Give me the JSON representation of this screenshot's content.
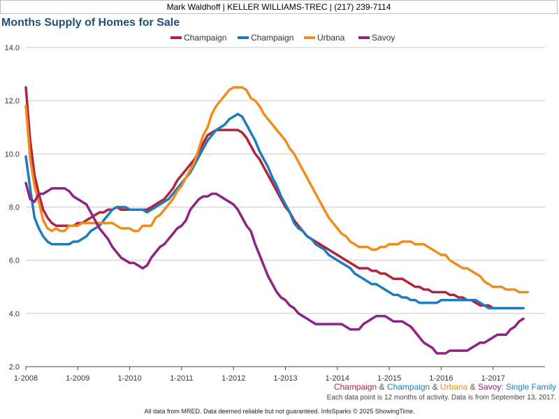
{
  "header": {
    "agent_line": "Mark Waldhoff | KELLER WILLIAMS-TREC | (217) 239-7114"
  },
  "chart_title": "Months Supply of Homes for Sale",
  "footer": {
    "series_caption": [
      {
        "text": "Champaign",
        "color": "#b0243c"
      },
      {
        "text": " & ",
        "color": "#555555"
      },
      {
        "text": "Champaign",
        "color": "#1e7bbd"
      },
      {
        "text": " & ",
        "color": "#555555"
      },
      {
        "text": "Urbana",
        "color": "#f08c1e"
      },
      {
        "text": " & ",
        "color": "#555555"
      },
      {
        "text": "Savoy",
        "color": "#8e2287"
      },
      {
        "text": ": Single Family",
        "color": "#1e7bbd"
      }
    ],
    "note": "Each data point is 12 months of activity. Data is from September 13, 2017.",
    "disclaimer": "All data from MRED. Data deemed reliable but not guaranteed. InfoSparks © 2025 ShowingTime."
  },
  "chart_data": {
    "type": "line",
    "title": "Months Supply of Homes for Sale",
    "xlabel": "",
    "ylabel": "",
    "ylim": [
      2.0,
      14.0
    ],
    "yticks": [
      "2.0",
      "4.0",
      "6.0",
      "8.0",
      "10.0",
      "12.0",
      "14.0"
    ],
    "xticks": [
      "1-2008",
      "1-2009",
      "1-2010",
      "1-2011",
      "1-2012",
      "1-2013",
      "1-2014",
      "1-2015",
      "1-2016",
      "1-2017"
    ],
    "x_start": "2008-01",
    "grid": true,
    "legend_position": "top-center",
    "series": [
      {
        "name": "Champaign",
        "color": "#b0243c",
        "values": [
          12.5,
          10.5,
          9.2,
          8.5,
          7.9,
          7.6,
          7.4,
          7.3,
          7.3,
          7.3,
          7.3,
          7.3,
          7.4,
          7.4,
          7.5,
          7.6,
          7.7,
          7.8,
          7.8,
          7.9,
          7.9,
          8.0,
          7.9,
          7.9,
          7.9,
          7.9,
          7.9,
          7.9,
          7.9,
          8.0,
          8.1,
          8.2,
          8.3,
          8.5,
          8.7,
          9.0,
          9.2,
          9.4,
          9.6,
          9.8,
          10.1,
          10.4,
          10.7,
          10.8,
          10.9,
          10.9,
          10.9,
          10.9,
          10.9,
          10.9,
          10.8,
          10.6,
          10.3,
          10.0,
          9.8,
          9.5,
          9.2,
          8.9,
          8.6,
          8.3,
          8.0,
          7.8,
          7.5,
          7.3,
          7.1,
          6.9,
          6.8,
          6.7,
          6.6,
          6.5,
          6.4,
          6.3,
          6.2,
          6.1,
          6.0,
          5.9,
          5.8,
          5.7,
          5.7,
          5.7,
          5.6,
          5.6,
          5.5,
          5.5,
          5.4,
          5.3,
          5.3,
          5.3,
          5.2,
          5.1,
          5.0,
          5.0,
          4.9,
          4.9,
          4.8,
          4.8,
          4.8,
          4.8,
          4.7,
          4.7,
          4.6,
          4.6,
          4.5,
          4.5,
          4.4,
          4.3,
          4.3,
          4.3,
          4.2,
          4.2,
          4.2,
          4.2,
          4.2,
          4.2,
          4.2,
          4.2
        ]
      },
      {
        "name": "Champaign",
        "color": "#1e7bbd",
        "values": [
          9.9,
          8.7,
          7.6,
          7.2,
          6.9,
          6.7,
          6.6,
          6.6,
          6.6,
          6.6,
          6.6,
          6.7,
          6.7,
          6.8,
          6.9,
          7.1,
          7.2,
          7.3,
          7.5,
          7.7,
          7.9,
          8.0,
          8.0,
          8.0,
          7.9,
          7.9,
          7.9,
          7.9,
          7.8,
          7.9,
          8.0,
          8.1,
          8.2,
          8.3,
          8.5,
          8.7,
          8.9,
          9.1,
          9.3,
          9.6,
          9.9,
          10.2,
          10.5,
          10.7,
          10.9,
          11.0,
          11.1,
          11.3,
          11.4,
          11.5,
          11.4,
          11.1,
          10.8,
          10.5,
          10.1,
          9.8,
          9.5,
          9.1,
          8.8,
          8.4,
          8.1,
          7.8,
          7.4,
          7.2,
          7.1,
          6.9,
          6.8,
          6.6,
          6.5,
          6.4,
          6.2,
          6.1,
          6.0,
          5.9,
          5.8,
          5.7,
          5.5,
          5.4,
          5.3,
          5.2,
          5.1,
          5.1,
          5.0,
          4.9,
          4.8,
          4.7,
          4.7,
          4.6,
          4.6,
          4.5,
          4.5,
          4.4,
          4.4,
          4.4,
          4.4,
          4.4,
          4.5,
          4.5,
          4.5,
          4.5,
          4.5,
          4.5,
          4.5,
          4.5,
          4.5,
          4.4,
          4.3,
          4.2,
          4.2,
          4.2,
          4.2,
          4.2,
          4.2,
          4.2,
          4.2,
          4.2
        ]
      },
      {
        "name": "Urbana",
        "color": "#f08c1e",
        "values": [
          11.8,
          9.8,
          8.8,
          8.2,
          7.5,
          7.2,
          7.1,
          7.2,
          7.1,
          7.1,
          7.3,
          7.3,
          7.3,
          7.4,
          7.4,
          7.4,
          7.4,
          7.4,
          7.4,
          7.4,
          7.4,
          7.3,
          7.2,
          7.2,
          7.2,
          7.1,
          7.1,
          7.3,
          7.3,
          7.3,
          7.6,
          7.7,
          7.9,
          8.1,
          8.3,
          8.6,
          8.8,
          9.1,
          9.4,
          9.7,
          10.2,
          10.7,
          11.0,
          11.5,
          11.8,
          12.0,
          12.2,
          12.4,
          12.5,
          12.5,
          12.5,
          12.4,
          12.1,
          12.0,
          11.8,
          11.5,
          11.3,
          11.1,
          10.9,
          10.7,
          10.5,
          10.2,
          10.0,
          9.7,
          9.4,
          9.1,
          8.8,
          8.5,
          8.2,
          7.9,
          7.6,
          7.4,
          7.2,
          7.0,
          6.9,
          6.7,
          6.6,
          6.5,
          6.5,
          6.5,
          6.4,
          6.4,
          6.5,
          6.5,
          6.6,
          6.6,
          6.6,
          6.7,
          6.7,
          6.7,
          6.6,
          6.6,
          6.6,
          6.5,
          6.4,
          6.3,
          6.2,
          6.2,
          6.0,
          5.9,
          5.8,
          5.7,
          5.7,
          5.6,
          5.5,
          5.4,
          5.2,
          5.1,
          5.0,
          5.0,
          5.0,
          4.9,
          4.9,
          4.9,
          4.8,
          4.8,
          4.8
        ]
      },
      {
        "name": "Savoy",
        "color": "#8e2287",
        "values": [
          8.9,
          8.3,
          8.2,
          8.5,
          8.5,
          8.6,
          8.7,
          8.7,
          8.7,
          8.7,
          8.6,
          8.4,
          8.3,
          8.2,
          8.1,
          7.8,
          7.5,
          7.2,
          7.0,
          6.8,
          6.5,
          6.3,
          6.1,
          6.0,
          5.9,
          5.9,
          5.8,
          5.7,
          5.8,
          6.1,
          6.3,
          6.5,
          6.6,
          6.8,
          7.0,
          7.2,
          7.3,
          7.5,
          7.9,
          8.1,
          8.3,
          8.4,
          8.4,
          8.5,
          8.5,
          8.4,
          8.3,
          8.2,
          8.1,
          7.9,
          7.6,
          7.3,
          7.1,
          6.6,
          6.2,
          5.8,
          5.4,
          5.1,
          4.8,
          4.6,
          4.5,
          4.3,
          4.2,
          4.0,
          3.9,
          3.8,
          3.7,
          3.6,
          3.6,
          3.6,
          3.6,
          3.6,
          3.6,
          3.6,
          3.5,
          3.4,
          3.4,
          3.4,
          3.6,
          3.7,
          3.8,
          3.9,
          3.9,
          3.9,
          3.8,
          3.7,
          3.7,
          3.7,
          3.6,
          3.5,
          3.3,
          3.1,
          2.9,
          2.8,
          2.7,
          2.5,
          2.5,
          2.5,
          2.6,
          2.6,
          2.6,
          2.6,
          2.6,
          2.7,
          2.8,
          2.9,
          2.9,
          3.0,
          3.1,
          3.2,
          3.2,
          3.2,
          3.4,
          3.5,
          3.7,
          3.8
        ]
      }
    ]
  }
}
